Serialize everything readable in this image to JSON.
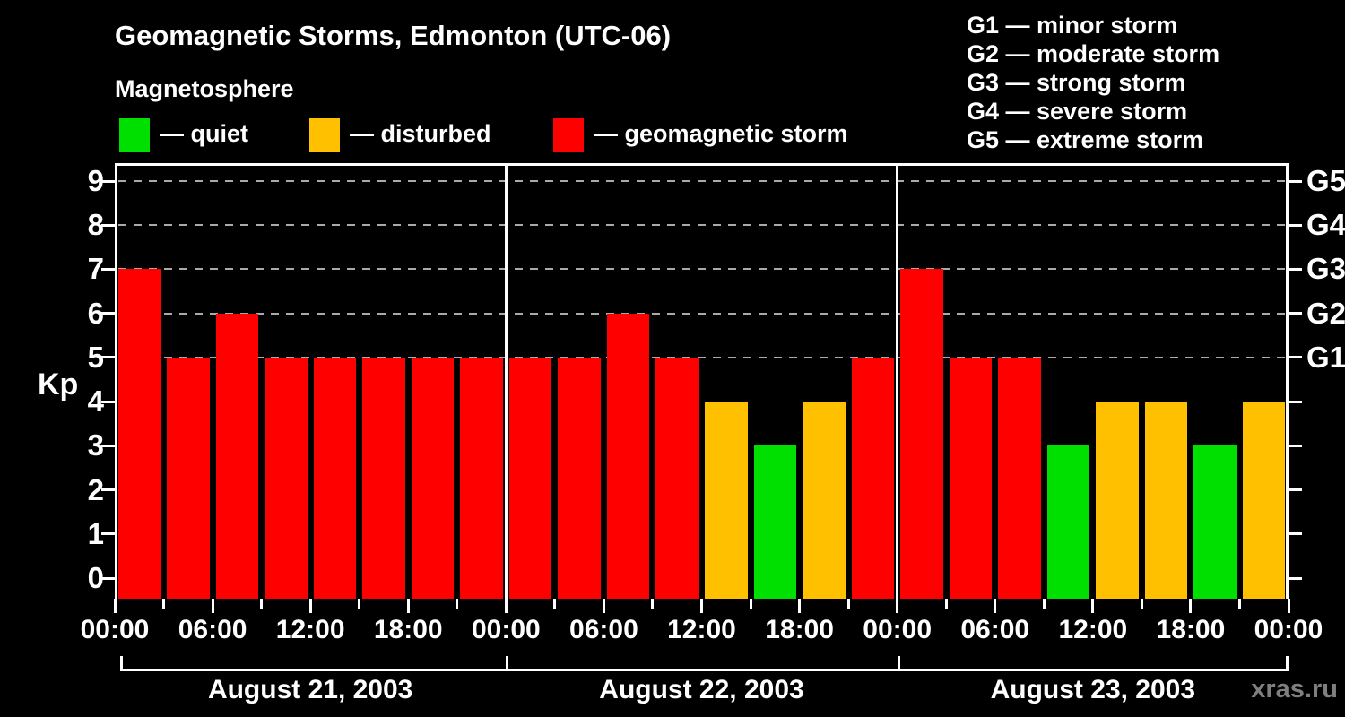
{
  "title": "Geomagnetic Storms, Edmonton (UTC-06)",
  "subtitle": "Magnetosphere",
  "legend": {
    "items": [
      {
        "key": "quiet",
        "label": "— quiet",
        "color": "#00e000"
      },
      {
        "key": "disturbed",
        "label": "— disturbed",
        "color": "#ffc000"
      },
      {
        "key": "storm",
        "label": "— geomagnetic storm",
        "color": "#ff0000"
      }
    ]
  },
  "g_scale_legend": [
    "G1 — minor storm",
    "G2 — moderate storm",
    "G3 — strong storm",
    "G4 — severe storm",
    "G5 — extreme storm"
  ],
  "watermark": "xras.ru",
  "chart_data": {
    "type": "bar",
    "title": "Geomagnetic Storms, Edmonton (UTC-06)",
    "ylabel": "Kp",
    "ylim": [
      0,
      9
    ],
    "yticks": [
      0,
      1,
      2,
      3,
      4,
      5,
      6,
      7,
      8,
      9
    ],
    "grid": {
      "dashed_kp_levels": [
        5,
        6,
        7,
        8,
        9
      ],
      "color": "#aaaaaa"
    },
    "right_axis": {
      "labels": [
        "G5",
        "G4",
        "G3",
        "G2",
        "G1"
      ],
      "kp_positions": [
        9,
        8,
        7,
        6,
        5
      ]
    },
    "x_axis": {
      "minor_tick_hours": 3,
      "major_tick_hours": 6,
      "labels": [
        "00:00",
        "06:00",
        "12:00",
        "18:00",
        "00:00",
        "06:00",
        "12:00",
        "18:00",
        "00:00",
        "06:00",
        "12:00",
        "18:00",
        "00:00"
      ]
    },
    "bar_interval_hours": 3,
    "status_colors": {
      "quiet": "#00e000",
      "disturbed": "#ffc000",
      "storm": "#ff0000"
    },
    "days": [
      {
        "date": "August 21, 2003",
        "kp": [
          7,
          5,
          6,
          5,
          5,
          5,
          5,
          5
        ],
        "status": [
          "storm",
          "storm",
          "storm",
          "storm",
          "storm",
          "storm",
          "storm",
          "storm"
        ]
      },
      {
        "date": "August 22, 2003",
        "kp": [
          5,
          5,
          6,
          5,
          4,
          3,
          4,
          5
        ],
        "status": [
          "storm",
          "storm",
          "storm",
          "storm",
          "disturbed",
          "quiet",
          "disturbed",
          "storm"
        ]
      },
      {
        "date": "August 23, 2003",
        "kp": [
          7,
          5,
          5,
          3,
          4,
          4,
          3,
          4
        ],
        "status": [
          "storm",
          "storm",
          "storm",
          "quiet",
          "disturbed",
          "disturbed",
          "quiet",
          "disturbed"
        ]
      }
    ]
  }
}
